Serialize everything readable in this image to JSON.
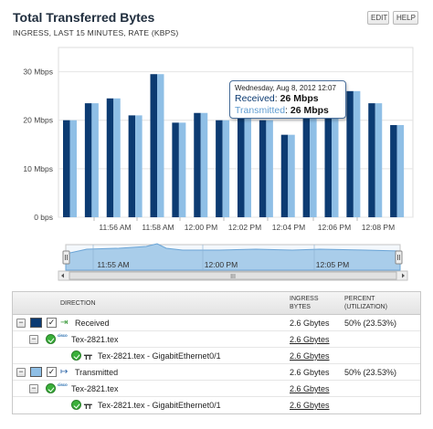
{
  "header": {
    "title": "Total Transferred Bytes",
    "subtitle": "INGRESS, LAST 15 MINUTES, RATE (KBPS)",
    "edit_label": "EDIT",
    "help_label": "HELP"
  },
  "colors": {
    "received": "#0c3b72",
    "transmitted": "#8fbfe6",
    "navigator_fill": "#a9cdea",
    "navigator_line": "#6aa4d6"
  },
  "chart_data": {
    "type": "bar",
    "title": "Total Transferred Bytes",
    "subtitle": "INGRESS, LAST 15 MINUTES, RATE (KBPS)",
    "y_ticks": [
      "0 bps",
      "10 Mbps",
      "20 Mbps",
      "30 Mbps"
    ],
    "ylim": [
      0,
      35
    ],
    "x_ticks": [
      "11:56 AM",
      "11:58 AM",
      "12:00 PM",
      "12:02 PM",
      "12:04 PM",
      "12:06 PM",
      "12:08 PM"
    ],
    "series": [
      {
        "name": "Received",
        "values": [
          20,
          23.5,
          24.5,
          21,
          29.5,
          19.5,
          21.5,
          20,
          20.5,
          20,
          17,
          22,
          24,
          26,
          23.5,
          19
        ]
      },
      {
        "name": "Transmitted",
        "values": [
          20,
          23.5,
          24.5,
          21,
          29.5,
          19.5,
          21.5,
          20,
          20.5,
          20,
          17,
          22,
          24,
          26,
          23.5,
          19
        ]
      }
    ],
    "grid": true,
    "legend": "none"
  },
  "tooltip": {
    "date": "Wednesday, Aug 8, 2012 12:07",
    "received_label": "Received",
    "received_value": "26 Mbps",
    "transmitted_label": "Transmitted",
    "transmitted_value": "26 Mbps"
  },
  "navigator": {
    "labels": [
      "11:55 AM",
      "12:00 PM",
      "12:05 PM"
    ],
    "scroll_grip": "III"
  },
  "table": {
    "headers": {
      "direction": "DIRECTION",
      "ingress": "INGRESS\nBYTES",
      "percent": "PERCENT\n(UTILIZATION)"
    },
    "rows": [
      {
        "label": "Received",
        "bytes": "2.6 Gbytes",
        "percent": "50% (23.53%)"
      },
      {
        "label": "Tex-2821.tex",
        "bytes": "2.6 Gbytes",
        "percent": ""
      },
      {
        "label": "Tex-2821.tex - GigabitEthernet0/1",
        "bytes": "2.6 Gbytes",
        "percent": ""
      },
      {
        "label": "Transmitted",
        "bytes": "2.6 Gbytes",
        "percent": "50% (23.53%)"
      },
      {
        "label": "Tex-2821.tex",
        "bytes": "2.6 Gbytes",
        "percent": ""
      },
      {
        "label": "Tex-2821.tex - GigabitEthernet0/1",
        "bytes": "2.6 Gbytes",
        "percent": ""
      }
    ],
    "cisco_text": "cisco"
  }
}
